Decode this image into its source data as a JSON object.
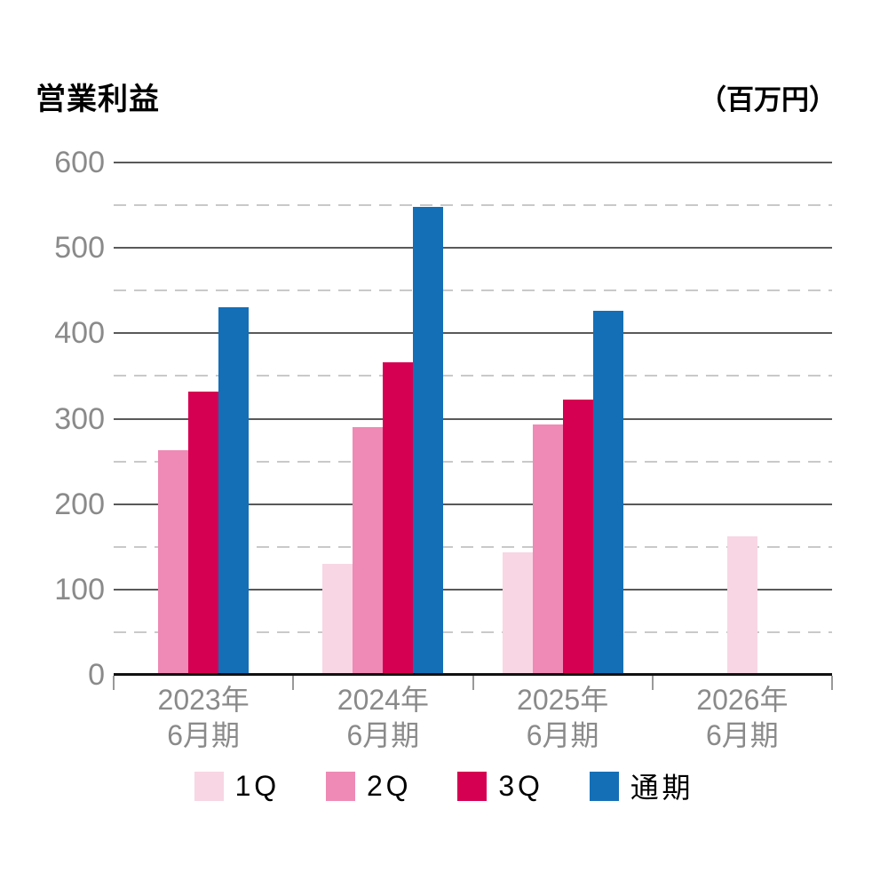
{
  "header": {
    "title": "営業利益",
    "unit": "（百万円）"
  },
  "chart_data": {
    "type": "bar",
    "title": "営業利益",
    "unit_label": "（百万円）",
    "categories": [
      {
        "line1": "2023年",
        "line2": "6月期"
      },
      {
        "line1": "2024年",
        "line2": "6月期"
      },
      {
        "line1": "2025年",
        "line2": "6月期"
      },
      {
        "line1": "2026年",
        "line2": "6月期"
      }
    ],
    "series": [
      {
        "name": "1Q",
        "color": "#f8d6e4",
        "values": [
          null,
          130,
          143,
          162
        ]
      },
      {
        "name": "2Q",
        "color": "#ee8ab5",
        "values": [
          263,
          290,
          293,
          null
        ]
      },
      {
        "name": "3Q",
        "color": "#d60053",
        "values": [
          332,
          366,
          322,
          null
        ]
      },
      {
        "name": "通期",
        "color": "#146fb7",
        "values": [
          430,
          548,
          426,
          null
        ]
      }
    ],
    "ylim": [
      0,
      600
    ],
    "y_major_step": 100,
    "y_minor_step": 50,
    "y_tick_labels": [
      "0",
      "100",
      "200",
      "300",
      "400",
      "500",
      "600"
    ],
    "grid": "horizontal, solid majors every 100, dashed minors every 50",
    "legend_position": "bottom"
  },
  "colors": {
    "axis_label": "#8a8a8a",
    "grid_major": "#595959",
    "grid_minor": "#c9c9c9",
    "baseline": "#111111",
    "background": "#ffffff"
  }
}
